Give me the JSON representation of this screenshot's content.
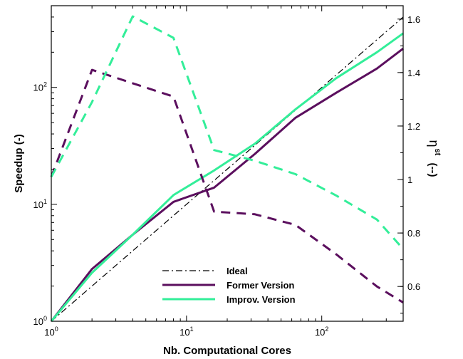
{
  "chart_data": {
    "type": "line",
    "xlabel": "Nb. Computational Cores",
    "ylabel": "Speedup (-)",
    "y2label": "η",
    "y2label_sup": "st",
    "y2label_unit": "(--)",
    "x_scale": "log",
    "y_scale": "log",
    "xlim": [
      1,
      400
    ],
    "ylim": [
      1,
      500
    ],
    "y2lim": [
      0.47,
      1.65
    ],
    "x_ticks": [
      {
        "value": 1,
        "base": "10",
        "exp": "0"
      },
      {
        "value": 10,
        "base": "10",
        "exp": "1"
      },
      {
        "value": 100,
        "base": "10",
        "exp": "2"
      }
    ],
    "y_ticks": [
      {
        "value": 1,
        "base": "10",
        "exp": "0"
      },
      {
        "value": 10,
        "base": "10",
        "exp": "1"
      },
      {
        "value": 100,
        "base": "10",
        "exp": "2"
      }
    ],
    "y2_ticks": [
      "0.6",
      "0.8",
      "1",
      "1.2",
      "1.4",
      "1.6"
    ],
    "grid": false,
    "legend_position": "bottom-center",
    "series": [
      {
        "name": "Ideal",
        "axis": "left",
        "style": "dashdot",
        "color": "#000000",
        "x": [
          1,
          400
        ],
        "y": [
          1,
          400
        ]
      },
      {
        "name": "Former Version",
        "axis": "left",
        "style": "solid",
        "color": "#5b0f5e",
        "x": [
          1,
          2,
          4,
          8,
          16,
          32,
          64,
          128,
          256,
          400
        ],
        "y": [
          1,
          2.8,
          5.5,
          10.5,
          13.9,
          27,
          55,
          90,
          145,
          215
        ]
      },
      {
        "name": "Improv. Version",
        "axis": "left",
        "style": "solid",
        "color": "#33ee99",
        "x": [
          1,
          2,
          4,
          8,
          16,
          32,
          64,
          128,
          256,
          400
        ],
        "y": [
          1,
          2.6,
          5.5,
          12,
          19.5,
          33,
          65,
          120,
          200,
          290
        ]
      },
      {
        "name": "",
        "axis": "right",
        "style": "dashed",
        "color": "#5b0f5e",
        "x": [
          1,
          2,
          4,
          8,
          16,
          32,
          64,
          128,
          256,
          400
        ],
        "y": [
          1.01,
          1.41,
          1.36,
          1.31,
          0.88,
          0.87,
          0.83,
          0.72,
          0.6,
          0.54
        ]
      },
      {
        "name": "",
        "axis": "right",
        "style": "dashed",
        "color": "#33ee99",
        "x": [
          1,
          2,
          4,
          8,
          16,
          32,
          64,
          128,
          256,
          400
        ],
        "y": [
          1.01,
          1.29,
          1.61,
          1.53,
          1.11,
          1.07,
          1.02,
          0.94,
          0.85,
          0.74
        ]
      }
    ]
  }
}
